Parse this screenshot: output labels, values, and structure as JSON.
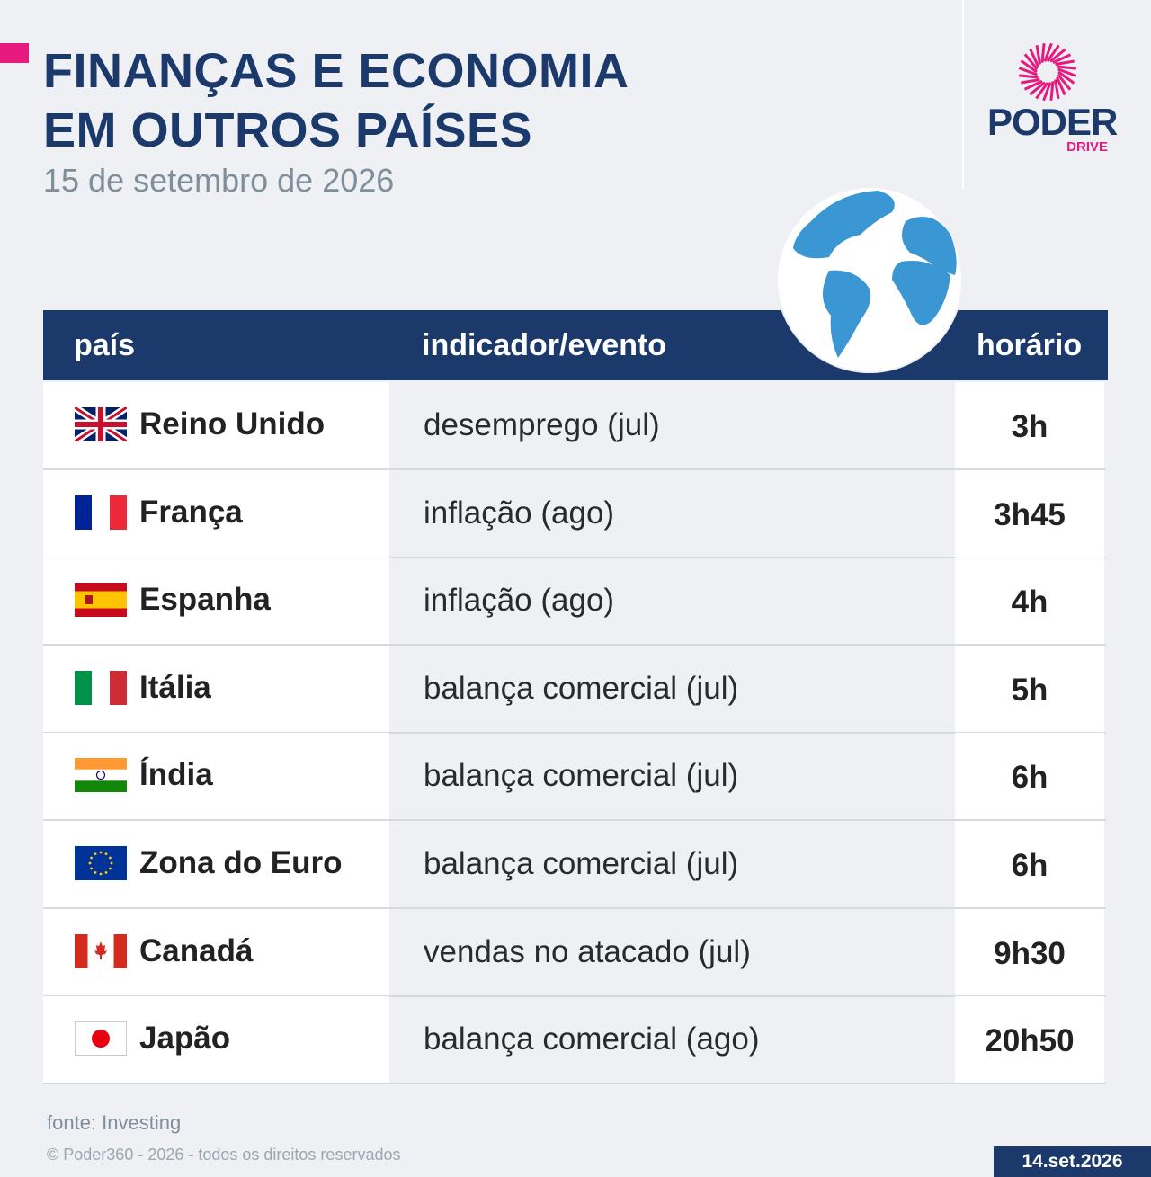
{
  "header": {
    "title_line1": "FINANÇAS E ECONOMIA",
    "title_line2": "EM OUTROS PAÍSES",
    "subtitle": "15 de setembro de 2026"
  },
  "logo": {
    "name": "PODER",
    "sub": "DRIVE"
  },
  "table": {
    "columns": [
      "país",
      "indicador/evento",
      "horário"
    ],
    "rows": [
      [
        "Reino Unido",
        "desemprego (jul)",
        "3h"
      ],
      [
        "França",
        "inflação (ago)",
        "3h45"
      ],
      [
        "Espanha",
        "inflação (ago)",
        "4h"
      ],
      [
        "Itália",
        "balança comercial (jul)",
        "5h"
      ],
      [
        "Índia",
        "balança comercial (jul)",
        "6h"
      ],
      [
        "Zona do Euro",
        "balança comercial (jul)",
        "6h"
      ],
      [
        "Canadá",
        "vendas no atacado (jul)",
        "9h30"
      ],
      [
        "Japão",
        "balança comercial (ago)",
        "20h50"
      ]
    ]
  },
  "footer": {
    "source": "fonte: Investing",
    "copyright": "© Poder360 - 2026 - todos os direitos reservados",
    "date": "14.set.2026"
  }
}
